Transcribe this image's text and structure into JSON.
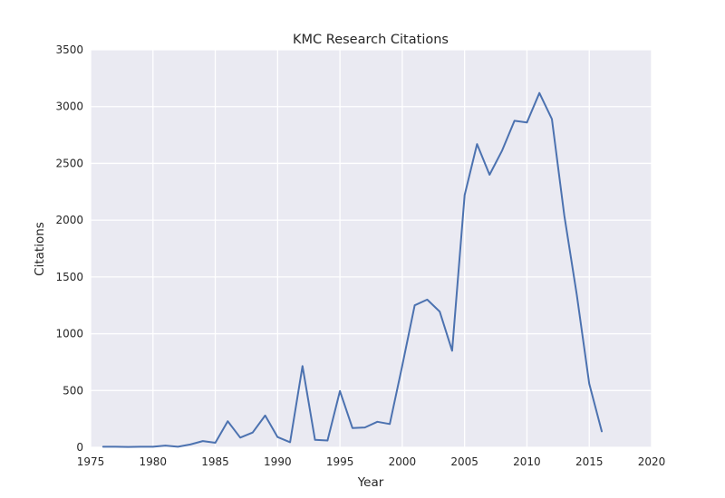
{
  "chart_data": {
    "type": "line",
    "title": "KMC Research Citations",
    "xlabel": "Year",
    "ylabel": "Citations",
    "xlim": [
      1975,
      2020
    ],
    "ylim": [
      0,
      3500
    ],
    "xticks": [
      1975,
      1980,
      1985,
      1990,
      1995,
      2000,
      2005,
      2010,
      2015,
      2020
    ],
    "yticks": [
      0,
      500,
      1000,
      1500,
      2000,
      2500,
      3000,
      3500
    ],
    "grid": true,
    "legend": "none",
    "colors": {
      "background": "#eaeaf2",
      "grid": "#ffffff",
      "line": "#4c72b0"
    },
    "series": [
      {
        "x": [
          1976,
          1977,
          1978,
          1979,
          1980,
          1981,
          1982,
          1983,
          1984,
          1985,
          1986,
          1987,
          1988,
          1989,
          1990,
          1991,
          1992,
          1993,
          1994,
          1995,
          1996,
          1997,
          1998,
          1999,
          2000,
          2001,
          2002,
          2003,
          2004,
          2005,
          2006,
          2007,
          2008,
          2009,
          2010,
          2011,
          2012,
          2013,
          2014,
          2015,
          2016
        ],
        "y": [
          5,
          5,
          3,
          5,
          5,
          15,
          5,
          25,
          55,
          40,
          230,
          85,
          130,
          280,
          90,
          45,
          715,
          65,
          60,
          495,
          170,
          175,
          225,
          205,
          720,
          1250,
          1300,
          1195,
          850,
          2220,
          2670,
          2400,
          2610,
          2875,
          2860,
          3120,
          2890,
          2040,
          1340,
          560,
          140
        ]
      }
    ]
  }
}
